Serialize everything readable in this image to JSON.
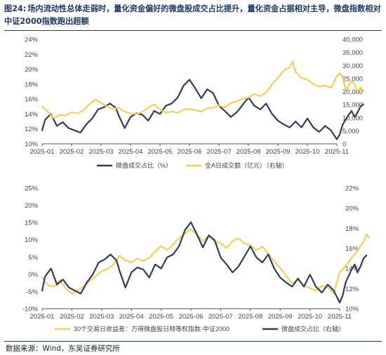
{
  "figure": {
    "number": "图24:",
    "title": "场内流动性总体走弱时，量化资金偏好的微盘股成交占比提升，量化资金占据相对主导，微盘指数相对中证2000指数跑出超额",
    "source": "数据来源：Wind，东吴证券研究所"
  },
  "colors": {
    "navy": "#2e3c5f",
    "gold": "#f6cf57",
    "axis": "#555555",
    "title_navy": "#1f3864"
  },
  "chart_data": [
    {
      "type": "line",
      "x_tick_labels": [
        "2025-01",
        "2025-02",
        "2025-03",
        "2025-04",
        "2025-05",
        "2025-06",
        "2025-07",
        "2025-08",
        "2025-09",
        "2025-10",
        "2025-11"
      ],
      "y_left": {
        "ticks": [
          "10%",
          "12%",
          "14%",
          "16%",
          "18%",
          "20%",
          "22%",
          "24%"
        ],
        "range": [
          10,
          24
        ]
      },
      "y_right": {
        "ticks": [
          "0",
          "5,000",
          "10,000",
          "15,000",
          "20,000",
          "25,000",
          "30,000",
          "35,000",
          "40,000"
        ],
        "range": [
          0,
          40000
        ]
      },
      "legend_position": "bottom",
      "series": [
        {
          "name": "微盘成交占比（%）",
          "axis": "left",
          "color": "#2e3c5f",
          "points": [
            [
              0,
              11.8
            ],
            [
              0.1,
              13.2
            ],
            [
              0.3,
              14.0
            ],
            [
              0.5,
              12.4
            ],
            [
              0.7,
              12.9
            ],
            [
              0.9,
              12.1
            ],
            [
              1.1,
              11.8
            ],
            [
              1.3,
              11.5
            ],
            [
              1.5,
              12.6
            ],
            [
              1.7,
              13.4
            ],
            [
              1.9,
              14.6
            ],
            [
              2.1,
              14.9
            ],
            [
              2.3,
              15.4
            ],
            [
              2.5,
              14.8
            ],
            [
              2.6,
              13.8
            ],
            [
              2.8,
              12.1
            ],
            [
              3.0,
              13.6
            ],
            [
              3.2,
              14.1
            ],
            [
              3.4,
              13.9
            ],
            [
              3.6,
              13.1
            ],
            [
              3.8,
              14.4
            ],
            [
              4.0,
              14.0
            ],
            [
              4.2,
              15.1
            ],
            [
              4.4,
              15.4
            ],
            [
              4.6,
              16.2
            ],
            [
              4.8,
              17.8
            ],
            [
              5.0,
              18.6
            ],
            [
              5.2,
              17.4
            ],
            [
              5.4,
              16.1
            ],
            [
              5.6,
              17.3
            ],
            [
              5.8,
              16.8
            ],
            [
              6.0,
              15.1
            ],
            [
              6.2,
              14.4
            ],
            [
              6.4,
              13.6
            ],
            [
              6.6,
              14.2
            ],
            [
              6.8,
              15.2
            ],
            [
              7.0,
              16.2
            ],
            [
              7.2,
              15.1
            ],
            [
              7.4,
              14.6
            ],
            [
              7.6,
              15.4
            ],
            [
              7.8,
              14.0
            ],
            [
              8.0,
              13.1
            ],
            [
              8.2,
              12.6
            ],
            [
              8.4,
              12.2
            ],
            [
              8.6,
              13.0
            ],
            [
              8.8,
              12.2
            ],
            [
              9.0,
              13.4
            ],
            [
              9.2,
              12.2
            ],
            [
              9.4,
              11.6
            ],
            [
              9.6,
              12.4
            ],
            [
              9.8,
              11.8
            ],
            [
              10.0,
              10.6
            ],
            [
              10.1,
              11.3
            ],
            [
              10.2,
              12.6
            ],
            [
              10.4,
              13.9
            ],
            [
              10.5,
              14.4
            ],
            [
              10.6,
              13.6
            ],
            [
              10.7,
              14.2
            ],
            [
              10.8,
              15.0
            ],
            [
              10.9,
              15.3
            ]
          ]
        },
        {
          "name": "全A日成交额（亿元）（右轴）",
          "axis": "right",
          "color": "#f6cf57",
          "points": [
            [
              0,
              14300
            ],
            [
              0.2,
              12300
            ],
            [
              0.4,
              9800
            ],
            [
              0.6,
              11200
            ],
            [
              0.8,
              10800
            ],
            [
              1.0,
              12100
            ],
            [
              1.2,
              11600
            ],
            [
              1.4,
              12800
            ],
            [
              1.6,
              15100
            ],
            [
              1.8,
              16900
            ],
            [
              2.0,
              15700
            ],
            [
              2.2,
              14300
            ],
            [
              2.4,
              13300
            ],
            [
              2.6,
              13800
            ],
            [
              2.8,
              12400
            ],
            [
              3.0,
              11600
            ],
            [
              3.2,
              11400
            ],
            [
              3.4,
              12200
            ],
            [
              3.6,
              13900
            ],
            [
              3.8,
              15100
            ],
            [
              4.0,
              13200
            ],
            [
              4.2,
              11900
            ],
            [
              4.4,
              12400
            ],
            [
              4.6,
              11800
            ],
            [
              4.8,
              13100
            ],
            [
              5.0,
              13400
            ],
            [
              5.2,
              12900
            ],
            [
              5.4,
              12300
            ],
            [
              5.6,
              13600
            ],
            [
              5.8,
              13800
            ],
            [
              6.0,
              14700
            ],
            [
              6.2,
              13900
            ],
            [
              6.4,
              15600
            ],
            [
              6.6,
              16300
            ],
            [
              6.8,
              17200
            ],
            [
              7.0,
              17700
            ],
            [
              7.2,
              19100
            ],
            [
              7.4,
              18200
            ],
            [
              7.6,
              19600
            ],
            [
              7.8,
              22800
            ],
            [
              8.0,
              25300
            ],
            [
              8.2,
              28100
            ],
            [
              8.4,
              29200
            ],
            [
              8.5,
              31700
            ],
            [
              8.6,
              27400
            ],
            [
              8.8,
              25200
            ],
            [
              9.0,
              24600
            ],
            [
              9.2,
              22900
            ],
            [
              9.4,
              21900
            ],
            [
              9.6,
              22300
            ],
            [
              9.8,
              21400
            ],
            [
              10.0,
              25900
            ],
            [
              10.1,
              27100
            ],
            [
              10.2,
              25500
            ],
            [
              10.3,
              20600
            ],
            [
              10.5,
              24100
            ],
            [
              10.6,
              22700
            ],
            [
              10.7,
              20100
            ],
            [
              10.8,
              21600
            ],
            [
              10.9,
              20300
            ]
          ]
        }
      ]
    },
    {
      "type": "line",
      "x_tick_labels": [
        "2025-01",
        "2025-02",
        "2025-03",
        "2025-04",
        "2025-05",
        "2025-06",
        "2025-07",
        "2025-08",
        "2025-09",
        "2025-10",
        "2025-11"
      ],
      "y_left": {
        "ticks": [
          "-10%",
          "-5%",
          "0%",
          "5%",
          "10%",
          "15%",
          "20%",
          "25%"
        ],
        "range": [
          -10,
          25
        ]
      },
      "y_right": {
        "ticks": [
          "10%",
          "12%",
          "14%",
          "16%",
          "18%",
          "20%",
          "22%"
        ],
        "range": [
          10,
          22
        ]
      },
      "legend_position": "bottom",
      "series": [
        {
          "name": "30个交易日收益差：万得微盘股日频等权指数-中证2000",
          "axis": "left",
          "color": "#f6cf57",
          "points": [
            [
              0,
              -1.0
            ],
            [
              0.2,
              -3.2
            ],
            [
              0.4,
              -3.6
            ],
            [
              0.6,
              -1.6
            ],
            [
              0.8,
              -4.2
            ],
            [
              1.0,
              -5.6
            ],
            [
              1.2,
              -4.6
            ],
            [
              1.4,
              -3.6
            ],
            [
              1.6,
              -2.0
            ],
            [
              1.8,
              -0.5
            ],
            [
              2.0,
              0.8
            ],
            [
              2.2,
              1.6
            ],
            [
              2.4,
              2.8
            ],
            [
              2.6,
              5.4
            ],
            [
              2.8,
              4.0
            ],
            [
              3.0,
              3.4
            ],
            [
              3.2,
              4.6
            ],
            [
              3.4,
              3.8
            ],
            [
              3.6,
              4.8
            ],
            [
              3.8,
              6.6
            ],
            [
              4.0,
              8.2
            ],
            [
              4.2,
              7.0
            ],
            [
              4.4,
              8.6
            ],
            [
              4.6,
              10.4
            ],
            [
              4.8,
              11.8
            ],
            [
              5.0,
              13.0
            ],
            [
              5.2,
              11.6
            ],
            [
              5.4,
              9.6
            ],
            [
              5.6,
              11.0
            ],
            [
              5.8,
              9.4
            ],
            [
              6.0,
              9.0
            ],
            [
              6.2,
              7.6
            ],
            [
              6.4,
              9.6
            ],
            [
              6.6,
              10.4
            ],
            [
              6.8,
              9.0
            ],
            [
              7.0,
              8.4
            ],
            [
              7.2,
              7.0
            ],
            [
              7.4,
              8.0
            ],
            [
              7.6,
              6.0
            ],
            [
              7.8,
              3.8
            ],
            [
              8.0,
              1.8
            ],
            [
              8.2,
              -0.5
            ],
            [
              8.4,
              -2.6
            ],
            [
              8.6,
              -1.6
            ],
            [
              8.8,
              -3.4
            ],
            [
              9.0,
              -4.0
            ],
            [
              9.2,
              -4.8
            ],
            [
              9.4,
              -3.4
            ],
            [
              9.6,
              -3.8
            ],
            [
              9.8,
              -5.6
            ],
            [
              10.0,
              0.6
            ],
            [
              10.2,
              2.4
            ],
            [
              10.4,
              4.8
            ],
            [
              10.6,
              6.8
            ],
            [
              10.8,
              9.4
            ],
            [
              10.9,
              11.5
            ],
            [
              11.0,
              10.6
            ]
          ]
        },
        {
          "name": "微盘成交占比（右轴）",
          "axis": "right",
          "color": "#2e3c5f",
          "points": [
            [
              0,
              11.8
            ],
            [
              0.1,
              13.2
            ],
            [
              0.3,
              14.0
            ],
            [
              0.5,
              12.4
            ],
            [
              0.7,
              12.9
            ],
            [
              0.9,
              12.1
            ],
            [
              1.1,
              11.8
            ],
            [
              1.3,
              11.5
            ],
            [
              1.5,
              12.6
            ],
            [
              1.7,
              13.4
            ],
            [
              1.9,
              14.6
            ],
            [
              2.1,
              14.9
            ],
            [
              2.3,
              15.4
            ],
            [
              2.5,
              14.8
            ],
            [
              2.6,
              13.8
            ],
            [
              2.8,
              12.1
            ],
            [
              3.0,
              13.6
            ],
            [
              3.2,
              14.1
            ],
            [
              3.4,
              13.9
            ],
            [
              3.6,
              13.1
            ],
            [
              3.8,
              14.4
            ],
            [
              4.0,
              14.0
            ],
            [
              4.2,
              15.1
            ],
            [
              4.4,
              15.4
            ],
            [
              4.6,
              16.2
            ],
            [
              4.8,
              17.8
            ],
            [
              5.0,
              18.6
            ],
            [
              5.2,
              17.4
            ],
            [
              5.4,
              16.1
            ],
            [
              5.6,
              17.3
            ],
            [
              5.8,
              16.8
            ],
            [
              6.0,
              15.1
            ],
            [
              6.2,
              14.4
            ],
            [
              6.4,
              13.6
            ],
            [
              6.6,
              14.2
            ],
            [
              6.8,
              15.2
            ],
            [
              7.0,
              16.2
            ],
            [
              7.2,
              15.1
            ],
            [
              7.4,
              14.6
            ],
            [
              7.6,
              15.4
            ],
            [
              7.8,
              14.0
            ],
            [
              8.0,
              13.1
            ],
            [
              8.2,
              12.6
            ],
            [
              8.4,
              12.2
            ],
            [
              8.6,
              13.0
            ],
            [
              8.8,
              12.2
            ],
            [
              9.0,
              13.4
            ],
            [
              9.2,
              12.2
            ],
            [
              9.4,
              11.6
            ],
            [
              9.6,
              12.4
            ],
            [
              9.8,
              11.8
            ],
            [
              10.0,
              10.6
            ],
            [
              10.1,
              11.3
            ],
            [
              10.2,
              12.6
            ],
            [
              10.4,
              13.9
            ],
            [
              10.5,
              14.4
            ],
            [
              10.6,
              13.6
            ],
            [
              10.7,
              14.2
            ],
            [
              10.8,
              15.0
            ],
            [
              10.9,
              15.3
            ]
          ]
        }
      ]
    }
  ]
}
